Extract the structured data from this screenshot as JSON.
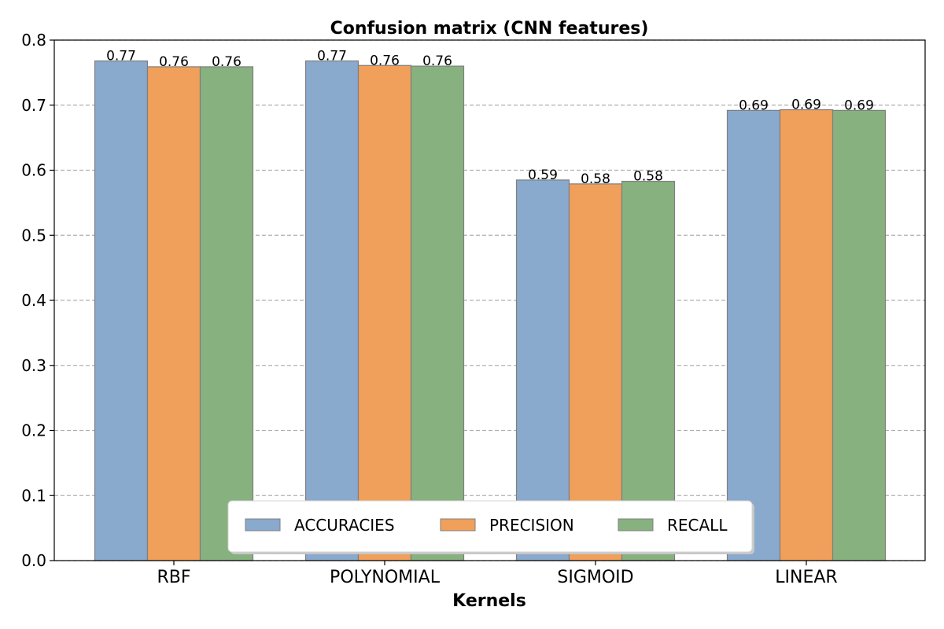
{
  "chart_data": {
    "type": "bar",
    "title": "Confusion matrix (CNN features)",
    "xlabel": "Kernels",
    "ylabel": "",
    "categories": [
      "RBF",
      "POLYNOMIAL",
      "SIGMOID",
      "LINEAR"
    ],
    "series": [
      {
        "name": "ACCURACIES",
        "color": "#89a9cd",
        "values": [
          0.768,
          0.768,
          0.585,
          0.692
        ],
        "labels": [
          "0.77",
          "0.77",
          "0.59",
          "0.69"
        ]
      },
      {
        "name": "PRECISION",
        "color": "#f0a05a",
        "values": [
          0.759,
          0.761,
          0.579,
          0.693
        ],
        "labels": [
          "0.76",
          "0.76",
          "0.58",
          "0.69"
        ]
      },
      {
        "name": "RECALL",
        "color": "#87b17f",
        "values": [
          0.759,
          0.76,
          0.583,
          0.692
        ],
        "labels": [
          "0.76",
          "0.76",
          "0.58",
          "0.69"
        ]
      }
    ],
    "ylim": [
      0,
      0.8
    ],
    "yticks": [
      "0.0",
      "0.1",
      "0.2",
      "0.3",
      "0.4",
      "0.5",
      "0.6",
      "0.7",
      "0.8"
    ],
    "ytick_values": [
      0,
      0.1,
      0.2,
      0.3,
      0.4,
      0.5,
      0.6,
      0.7,
      0.8
    ],
    "grid": true,
    "legend_position": "bottom-center",
    "bar_edge_color": "#7f7f7f"
  }
}
